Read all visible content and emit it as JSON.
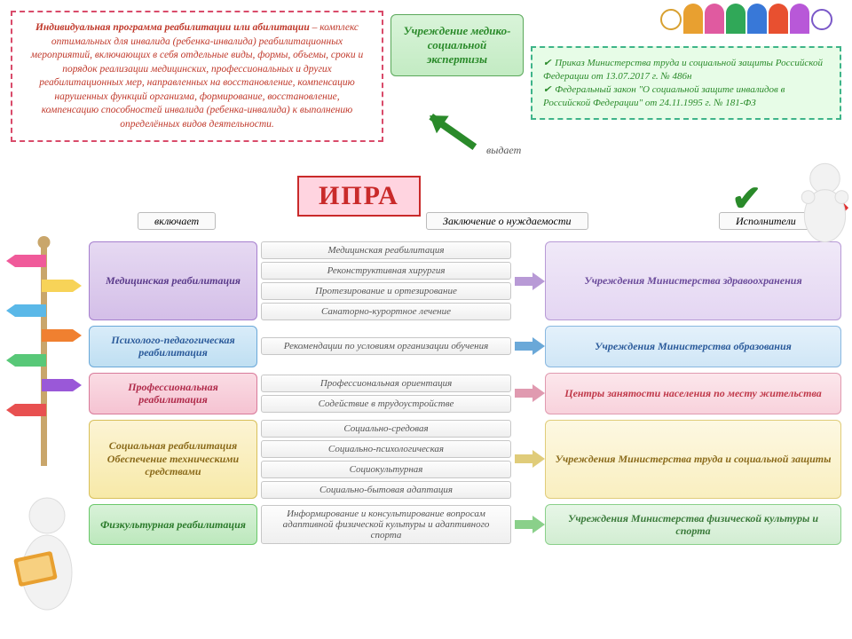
{
  "definition_html": "<b>Индивидуальная программа реабилитации или абилитации</b> – комплекс оптимальных для инвалида (ребенка-инвалида) реабилитационных мероприятий, включающих в себя отдельные виды, формы, объемы, сроки и порядок реализации медицинских, профессиональных и других реабилитационных мер, направленных на восстановление, компенсацию нарушенных функций организма, формирование, восстановление, компенсацию способностей инвалида (ребенка-инвалида) к выполнению определённых видов деятельности.",
  "mse": "Учреждение медико-социальной экспертизы",
  "issues": "выдает",
  "ipra": "ИПРА",
  "includes": "включает",
  "conclusion": "Заключение о нуждаемости",
  "executors": "Исполнители",
  "laws": [
    "Приказ Министерства труда и социальной защиты Российской Федерации от 13.07.2017 г. № 486н",
    "Федеральный закон \"О социальной защите инвалидов в Российской Федерации\" от 24.11.1995 г. № 181-ФЗ"
  ],
  "people_colors": [
    "#e8a030",
    "#e05aa0",
    "#30a858",
    "#3878d8",
    "#e85030",
    "#b858d8"
  ],
  "wheelchair_colors": [
    "#d8a030",
    "#7a58c8"
  ],
  "signpost_colors": [
    "#f05a9a",
    "#f7d358",
    "#5ab8e8",
    "#f08030",
    "#58c878",
    "#9a58d8",
    "#e85050"
  ],
  "rows": [
    {
      "cat": "Медицинская реабилитация",
      "items": [
        "Медицинская реабилитация",
        "Реконструктивная хирургия",
        "Протезирование и ортезирование",
        "Санаторно-курортное лечение"
      ],
      "exec": "Учреждения Министерства здравоохранения",
      "cat_class": "c-purple",
      "exec_class": "exec-purple",
      "arrow": "#b89ad6"
    },
    {
      "cat": "Психолого-педагогическая реабилитация",
      "items": [
        "Рекомендации по условиям организации обучения"
      ],
      "exec": "Учреждения Министерства образования",
      "cat_class": "c-blue",
      "exec_class": "exec-blue",
      "arrow": "#6aa8d8"
    },
    {
      "cat": "Профессиональная реабилитация",
      "items": [
        "Профессиональная ориентация",
        "Содействие в трудоустройстве"
      ],
      "exec": "Центры занятости населения по месту жительства",
      "cat_class": "c-pink",
      "exec_class": "exec-pink",
      "arrow": "#e09ab0"
    },
    {
      "cat": "Социальная реабилитация Обеспечение техническими средствами",
      "items": [
        "Социально-средовая",
        "Социально-психологическая",
        "Социокультурная",
        "Социально-бытовая адаптация"
      ],
      "exec": "Учреждения Министерства труда и социальной защиты",
      "cat_class": "c-yellow",
      "exec_class": "exec-yellow",
      "arrow": "#e0cc7a"
    },
    {
      "cat": "Физкультурная реабилитация",
      "items": [
        "Информирование и консультирование вопросам адаптивной физической культуры и адаптивного спорта"
      ],
      "exec": "Учреждения Министерства физической культуры и спорта",
      "cat_class": "c-green",
      "exec_class": "exec-green",
      "arrow": "#8ad08a"
    }
  ]
}
